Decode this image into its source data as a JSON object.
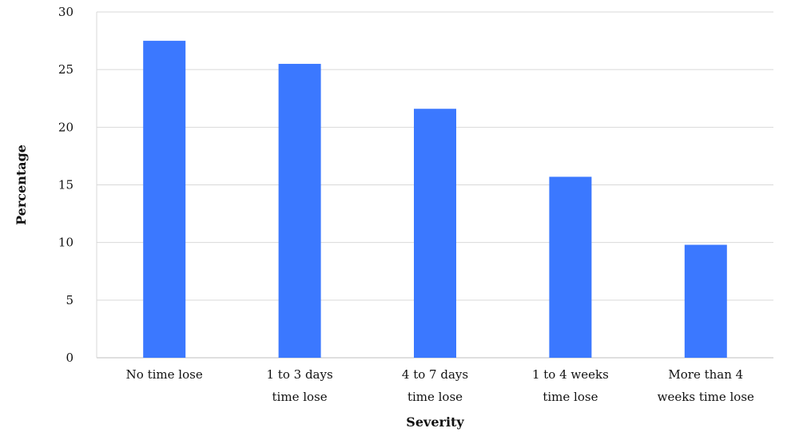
{
  "chart_data": {
    "type": "bar",
    "categories": [
      [
        "No time lose"
      ],
      [
        "1 to 3 days",
        "time lose"
      ],
      [
        "4 to 7 days",
        "time lose"
      ],
      [
        "1 to 4 weeks",
        "time lose"
      ],
      [
        "More than 4",
        "weeks time lose"
      ]
    ],
    "values": [
      27.5,
      25.5,
      21.6,
      15.7,
      9.8
    ],
    "xlabel": "Severity",
    "ylabel": "Percentage",
    "ylim": [
      0,
      30
    ],
    "yticks": [
      0,
      5,
      10,
      15,
      20,
      25,
      30
    ],
    "grid": true,
    "colors": {
      "bar": "#3b78ff",
      "grid": "#d9d9d9"
    }
  }
}
